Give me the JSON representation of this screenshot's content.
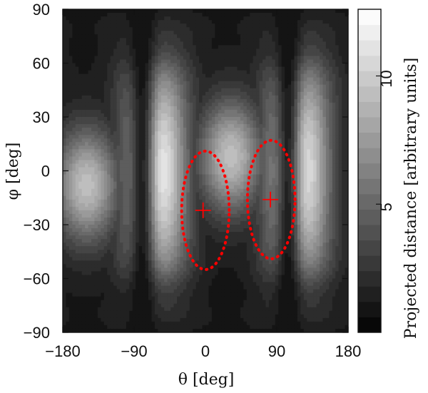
{
  "chart_data": {
    "type": "heatmap",
    "title": "",
    "xlabel": "θ [deg]",
    "ylabel": "φ [deg]",
    "colorbar_label": "Projected distance [arbitrary units]",
    "xlim": [
      -180,
      180
    ],
    "ylim": [
      -90,
      90
    ],
    "x_ticks": [
      -180,
      -90,
      0,
      90,
      180
    ],
    "y_ticks": [
      -90,
      -60,
      -30,
      0,
      30,
      60,
      90
    ],
    "x_tick_labels": [
      "−180",
      "−90",
      "0",
      "90",
      "180"
    ],
    "y_tick_labels": [
      "−90",
      "−60",
      "−30",
      "0",
      "30",
      "60",
      "90"
    ],
    "colorbar": {
      "min": 0,
      "max": 12.6,
      "levels": 21,
      "ticks": [
        5,
        10
      ],
      "tick_labels": [
        "5",
        "10"
      ],
      "colormap": "grayscale"
    },
    "colors": {
      "marker": "#ff0000",
      "contour_dark": "#000000",
      "contour_light": "#ffffff"
    },
    "field_maxima": [
      {
        "theta": -150,
        "phi": -8,
        "value": 12.6
      },
      {
        "theta": 32,
        "phi": 8,
        "value": 12.6
      }
    ],
    "markers": [
      {
        "type": "plus",
        "theta": -3,
        "phi": -22
      },
      {
        "type": "plus",
        "theta": 82,
        "phi": -16
      }
    ],
    "ellipses": [
      {
        "style": "dotted",
        "theta_center": 0,
        "phi_center": -22,
        "theta_half_width": 30,
        "phi_half_height": 33
      },
      {
        "style": "dotted",
        "theta_center": 83,
        "phi_center": -16,
        "theta_half_width": 30,
        "phi_half_height": 33
      }
    ]
  }
}
